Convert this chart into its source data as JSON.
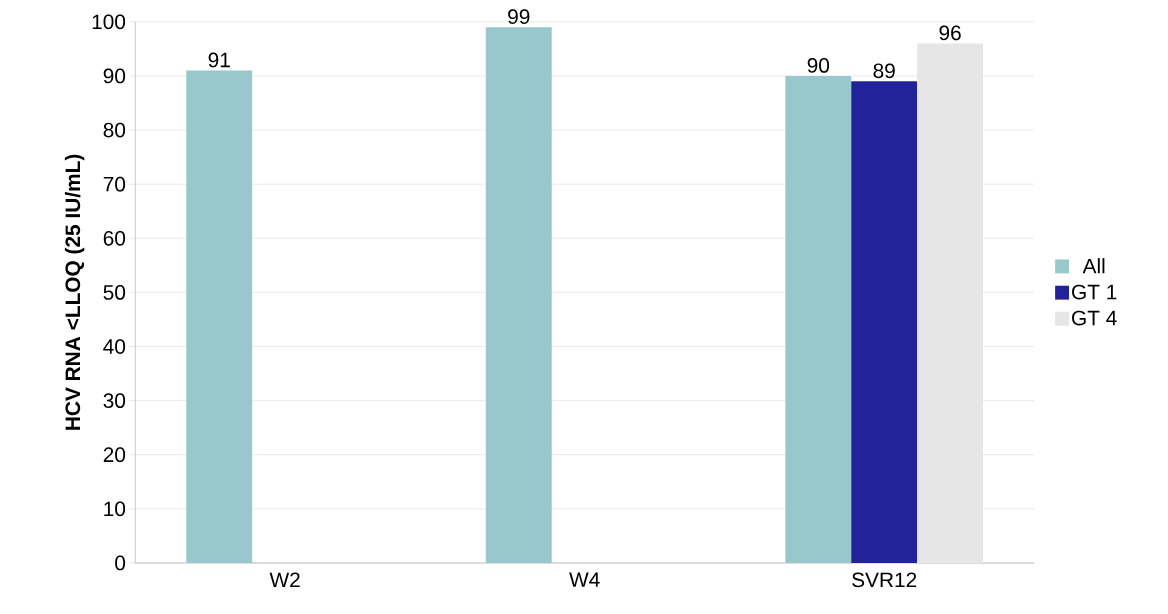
{
  "chart_data": {
    "type": "bar",
    "ylabel": "HCV RNA <LLOQ (25 IU/mL)",
    "categories": [
      "W2",
      "W4",
      "SVR12"
    ],
    "series": [
      {
        "name": "All",
        "color": "#98c8cb",
        "values": [
          91,
          99,
          90
        ]
      },
      {
        "name": "GT 1",
        "color": "#222299",
        "values": [
          null,
          null,
          89
        ]
      },
      {
        "name": "GT 4",
        "color": "#e6e6e6",
        "values": [
          null,
          null,
          96
        ]
      }
    ],
    "ylim": [
      0,
      100
    ],
    "yticks": [
      0,
      10,
      20,
      30,
      40,
      50,
      60,
      70,
      80,
      90,
      100
    ],
    "grid": "y",
    "legend": "right",
    "data_labels": true
  }
}
